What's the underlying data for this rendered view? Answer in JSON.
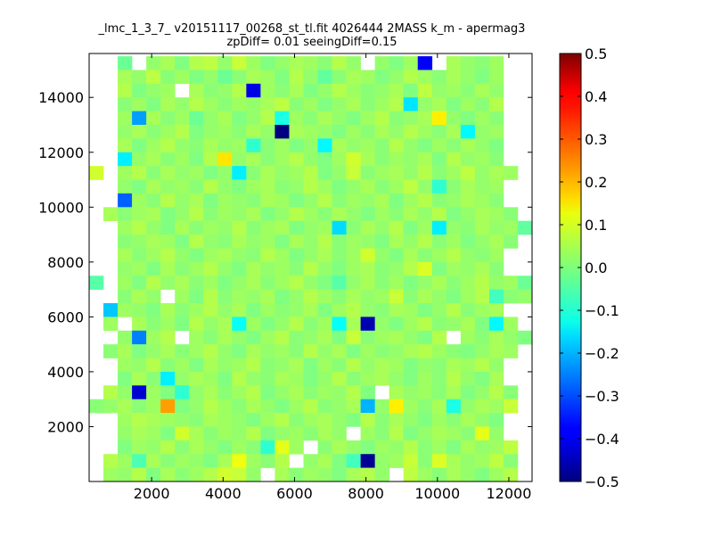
{
  "chart_data": {
    "type": "heatmap",
    "title": "_lmc_1_3_7_ v20151117_00268_st_tl.fit 4026444 2MASS k_m - apermag3",
    "subtitle": "zpDiff= 0.01 seeingDiff=0.15",
    "xlim": [
      250,
      12650
    ],
    "ylim": [
      0,
      15600
    ],
    "xticks": [
      2000,
      4000,
      6000,
      8000,
      10000,
      12000
    ],
    "xtick_labels": [
      "2000",
      "4000",
      "6000",
      "8000",
      "10000",
      "12000"
    ],
    "yticks": [
      2000,
      4000,
      6000,
      8000,
      10000,
      12000,
      14000
    ],
    "ytick_labels": [
      "2000",
      "4000",
      "6000",
      "8000",
      "10000",
      "12000",
      "14000"
    ],
    "x_bin_width": 400,
    "y_bin_width": 500,
    "x_bin_starts": [
      250,
      650,
      1050,
      1450,
      1850,
      2250,
      2650,
      3050,
      3450,
      3850,
      4250,
      4650,
      5050,
      5450,
      5850,
      6250,
      6650,
      7050,
      7450,
      7850,
      8250,
      8650,
      9050,
      9450,
      9850,
      10250,
      10650,
      11050,
      11450,
      11850,
      12250
    ],
    "y_bin_starts": [
      0,
      500,
      1000,
      1500,
      2000,
      2500,
      3000,
      3500,
      4000,
      4500,
      5000,
      5500,
      6000,
      6500,
      7000,
      7500,
      8000,
      8500,
      9000,
      9500,
      10000,
      10500,
      11000,
      11500,
      12000,
      12500,
      13000,
      13500,
      14000,
      14500,
      15000
    ],
    "values_note": "rows ordered from top (y=15000-15500) to bottom (y=0-500); null = no data",
    "values": [
      [
        null,
        null,
        -0.02,
        null,
        0.02,
        0.04,
        0.0,
        0.05,
        0.06,
        0.02,
        0.07,
        0.03,
        0.0,
        0.02,
        0.04,
        0.03,
        0.01,
        0.05,
        0.02,
        null,
        0.02,
        0.0,
        0.03,
        -0.38,
        null,
        0.04,
        0.02,
        0.01,
        0.03,
        null,
        null
      ],
      [
        null,
        null,
        0.04,
        0.02,
        0.06,
        0.01,
        0.03,
        0.0,
        0.02,
        -0.02,
        0.01,
        0.04,
        0.03,
        0.0,
        0.05,
        0.02,
        -0.03,
        0.01,
        0.04,
        0.03,
        0.0,
        0.02,
        0.05,
        0.03,
        0.01,
        0.04,
        0.02,
        0.0,
        0.03,
        null,
        null
      ],
      [
        null,
        null,
        0.05,
        0.0,
        0.02,
        0.03,
        null,
        0.04,
        0.01,
        0.02,
        0.05,
        -0.4,
        0.03,
        0.01,
        0.04,
        0.0,
        0.02,
        0.05,
        0.03,
        0.01,
        0.02,
        0.04,
        0.0,
        0.06,
        0.02,
        0.03,
        0.01,
        0.04,
        0.02,
        null,
        null
      ],
      [
        null,
        null,
        0.01,
        0.03,
        0.0,
        0.04,
        0.02,
        0.05,
        0.03,
        0.01,
        0.03,
        0.02,
        0.04,
        0.06,
        0.01,
        0.03,
        0.0,
        0.02,
        0.04,
        0.01,
        0.03,
        0.05,
        -0.15,
        0.02,
        0.04,
        0.0,
        0.03,
        0.01,
        0.05,
        null,
        null
      ],
      [
        null,
        null,
        0.03,
        -0.22,
        0.04,
        0.01,
        0.03,
        -0.02,
        0.02,
        0.04,
        0.0,
        0.02,
        0.05,
        -0.1,
        0.03,
        0.01,
        0.04,
        0.02,
        0.0,
        0.03,
        0.05,
        0.01,
        0.02,
        0.04,
        0.14,
        0.02,
        0.0,
        0.03,
        0.01,
        null,
        null
      ],
      [
        null,
        null,
        0.02,
        0.04,
        0.01,
        0.03,
        0.05,
        0.0,
        0.02,
        0.03,
        0.01,
        0.04,
        0.02,
        -0.5,
        0.04,
        0.03,
        0.02,
        0.0,
        0.03,
        0.01,
        0.04,
        0.02,
        0.05,
        0.03,
        0.01,
        0.04,
        -0.13,
        0.02,
        0.03,
        null,
        null
      ],
      [
        null,
        null,
        0.04,
        0.0,
        0.03,
        0.05,
        0.02,
        0.01,
        0.04,
        0.02,
        0.03,
        -0.08,
        0.01,
        0.03,
        0.0,
        0.02,
        -0.13,
        0.04,
        0.02,
        0.03,
        0.01,
        0.05,
        0.02,
        0.0,
        0.03,
        0.01,
        0.04,
        0.02,
        0.0,
        null,
        null
      ],
      [
        null,
        null,
        -0.14,
        0.02,
        0.04,
        0.01,
        0.03,
        0.0,
        0.05,
        0.15,
        0.02,
        0.04,
        0.01,
        0.03,
        0.05,
        0.02,
        0.0,
        0.03,
        0.08,
        0.04,
        0.01,
        0.03,
        0.02,
        0.04,
        0.0,
        0.05,
        0.02,
        0.03,
        0.01,
        null,
        null
      ],
      [
        0.08,
        null,
        0.03,
        0.05,
        0.01,
        0.04,
        0.02,
        0.03,
        0.0,
        0.02,
        -0.14,
        0.01,
        0.04,
        0.02,
        0.03,
        0.05,
        0.0,
        0.02,
        0.07,
        0.01,
        0.03,
        0.04,
        0.02,
        0.05,
        0.01,
        0.03,
        0.06,
        0.02,
        0.04,
        0.03,
        null
      ],
      [
        null,
        null,
        0.02,
        0.0,
        0.04,
        0.02,
        0.03,
        0.01,
        0.05,
        0.02,
        0.0,
        0.03,
        0.04,
        0.01,
        0.02,
        0.05,
        0.03,
        0.0,
        0.02,
        0.04,
        0.01,
        0.03,
        0.06,
        0.02,
        -0.08,
        0.01,
        0.04,
        0.02,
        0.03,
        null,
        null
      ],
      [
        null,
        null,
        -0.28,
        0.03,
        0.01,
        0.05,
        0.02,
        0.04,
        0.0,
        0.03,
        0.02,
        0.01,
        0.04,
        0.03,
        0.0,
        0.02,
        0.05,
        0.01,
        0.03,
        0.02,
        0.04,
        0.0,
        0.03,
        0.05,
        0.01,
        0.02,
        0.04,
        0.03,
        0.01,
        null,
        null
      ],
      [
        null,
        0.04,
        0.01,
        0.03,
        0.04,
        0.0,
        0.02,
        0.05,
        0.01,
        0.03,
        0.02,
        0.04,
        0.0,
        0.02,
        0.05,
        0.03,
        0.01,
        0.04,
        0.02,
        0.0,
        0.03,
        0.01,
        0.04,
        0.02,
        0.05,
        0.0,
        0.02,
        0.04,
        0.03,
        0.01,
        null
      ],
      [
        null,
        null,
        0.03,
        0.05,
        0.02,
        0.0,
        0.04,
        0.01,
        0.03,
        0.02,
        0.05,
        0.01,
        0.03,
        0.04,
        0.0,
        0.02,
        0.03,
        -0.16,
        0.01,
        0.04,
        0.02,
        0.05,
        0.0,
        0.03,
        -0.14,
        0.02,
        0.01,
        0.04,
        0.02,
        0.03,
        -0.03
      ],
      [
        null,
        null,
        0.01,
        0.02,
        0.04,
        0.03,
        0.0,
        0.05,
        0.02,
        0.01,
        0.04,
        0.02,
        0.03,
        0.0,
        0.04,
        0.02,
        0.05,
        0.01,
        0.03,
        0.02,
        0.0,
        0.04,
        0.02,
        0.05,
        0.01,
        0.03,
        0.0,
        0.02,
        0.04,
        0.01,
        null
      ],
      [
        null,
        null,
        0.04,
        0.01,
        0.03,
        0.05,
        0.02,
        0.0,
        0.03,
        0.04,
        0.02,
        0.01,
        0.05,
        0.03,
        0.0,
        0.02,
        0.04,
        0.01,
        0.03,
        0.08,
        0.02,
        0.0,
        0.04,
        0.01,
        0.03,
        0.05,
        0.02,
        0.01,
        0.03,
        null,
        null
      ],
      [
        null,
        null,
        0.02,
        0.03,
        0.0,
        0.04,
        0.01,
        0.03,
        0.05,
        0.02,
        0.0,
        0.04,
        0.02,
        0.03,
        0.01,
        0.05,
        0.02,
        0.0,
        0.03,
        0.04,
        0.01,
        0.02,
        0.05,
        0.09,
        0.0,
        0.03,
        0.02,
        0.04,
        0.01,
        null,
        null
      ],
      [
        -0.04,
        null,
        0.03,
        0.0,
        0.05,
        0.02,
        0.04,
        0.01,
        0.03,
        0.0,
        0.02,
        0.04,
        0.01,
        0.03,
        0.05,
        0.02,
        0.0,
        -0.04,
        0.02,
        0.04,
        0.01,
        0.03,
        0.0,
        0.02,
        0.04,
        0.01,
        0.03,
        0.05,
        0.02,
        0.03,
        -0.02
      ],
      [
        null,
        null,
        0.01,
        0.04,
        0.02,
        null,
        0.03,
        0.0,
        0.05,
        0.01,
        0.03,
        0.02,
        0.04,
        0.0,
        0.02,
        0.05,
        0.03,
        0.01,
        0.04,
        0.02,
        0.03,
        0.07,
        0.01,
        0.04,
        0.02,
        0.0,
        0.03,
        0.05,
        -0.06,
        0.01,
        0.02
      ],
      [
        null,
        -0.18,
        0.03,
        0.02,
        0.0,
        0.04,
        0.01,
        0.03,
        0.05,
        0.02,
        0.04,
        0.0,
        0.03,
        0.01,
        0.02,
        0.04,
        0.0,
        0.03,
        0.05,
        0.02,
        0.01,
        0.04,
        0.03,
        0.0,
        0.02,
        0.05,
        0.01,
        0.03,
        0.04,
        null,
        null
      ],
      [
        null,
        0.03,
        null,
        0.04,
        0.01,
        0.03,
        0.0,
        0.05,
        0.02,
        0.04,
        -0.12,
        0.03,
        0.0,
        0.02,
        0.05,
        0.01,
        0.03,
        -0.12,
        0.04,
        -0.45,
        0.02,
        0.0,
        0.03,
        0.05,
        0.01,
        0.02,
        0.04,
        0.0,
        -0.13,
        0.03,
        null
      ],
      [
        null,
        null,
        0.02,
        -0.25,
        0.03,
        0.05,
        null,
        0.03,
        0.01,
        0.04,
        0.02,
        0.0,
        0.03,
        0.05,
        0.01,
        0.02,
        0.04,
        0.0,
        0.07,
        0.01,
        0.03,
        0.04,
        0.02,
        0.0,
        0.05,
        null,
        0.03,
        0.01,
        0.04,
        0.02,
        0.0
      ],
      [
        null,
        0.01,
        0.04,
        0.0,
        0.02,
        0.04,
        0.01,
        0.03,
        0.05,
        0.02,
        0.0,
        0.04,
        0.02,
        0.03,
        0.01,
        0.05,
        0.02,
        0.04,
        0.0,
        0.03,
        0.01,
        0.02,
        0.04,
        0.05,
        0.03,
        0.01,
        0.0,
        0.02,
        0.04,
        0.03,
        null
      ],
      [
        null,
        null,
        0.03,
        0.02,
        0.05,
        0.01,
        0.03,
        0.0,
        0.04,
        0.02,
        0.03,
        0.05,
        0.01,
        0.02,
        0.04,
        0.0,
        0.03,
        0.01,
        0.05,
        0.02,
        0.04,
        0.03,
        0.0,
        0.02,
        0.01,
        0.04,
        0.03,
        0.05,
        0.02,
        null,
        null
      ],
      [
        null,
        null,
        0.0,
        0.04,
        0.01,
        -0.14,
        0.02,
        0.04,
        0.03,
        0.0,
        0.05,
        0.02,
        0.01,
        0.04,
        0.03,
        0.0,
        0.02,
        0.05,
        0.01,
        0.03,
        0.04,
        0.02,
        0.0,
        0.03,
        0.01,
        0.05,
        0.02,
        0.0,
        0.04,
        null,
        null
      ],
      [
        null,
        0.05,
        0.02,
        -0.42,
        0.03,
        0.0,
        -0.08,
        0.02,
        0.04,
        0.01,
        0.03,
        0.05,
        0.0,
        0.02,
        0.04,
        0.01,
        0.03,
        0.02,
        0.05,
        0.0,
        null,
        0.04,
        0.02,
        0.03,
        0.01,
        0.04,
        0.0,
        0.02,
        0.05,
        0.01,
        null
      ],
      [
        0.01,
        0.02,
        0.04,
        0.01,
        0.03,
        0.22,
        0.0,
        0.02,
        0.05,
        0.03,
        0.01,
        0.04,
        0.02,
        0.0,
        0.03,
        0.05,
        0.01,
        0.02,
        0.04,
        -0.2,
        0.02,
        0.14,
        0.03,
        0.01,
        0.04,
        -0.1,
        0.02,
        0.04,
        0.03,
        0.07,
        null
      ],
      [
        null,
        null,
        0.03,
        0.05,
        0.04,
        0.03,
        0.02,
        0.01,
        0.04,
        0.03,
        0.02,
        0.0,
        0.03,
        0.05,
        0.01,
        0.03,
        0.04,
        0.02,
        0.0,
        0.05,
        0.01,
        0.04,
        0.02,
        0.0,
        0.03,
        0.01,
        0.04,
        0.02,
        0.0,
        null,
        null
      ],
      [
        null,
        null,
        0.02,
        0.04,
        0.03,
        0.0,
        0.08,
        0.04,
        0.01,
        0.03,
        0.02,
        0.05,
        0.0,
        0.02,
        0.03,
        0.01,
        0.04,
        0.02,
        null,
        0.03,
        0.01,
        0.05,
        0.0,
        0.02,
        0.04,
        0.03,
        0.01,
        0.1,
        0.02,
        null,
        null
      ],
      [
        null,
        null,
        0.0,
        0.03,
        0.02,
        0.05,
        0.01,
        0.04,
        0.02,
        0.0,
        0.03,
        0.01,
        -0.08,
        0.1,
        0.03,
        null,
        0.01,
        0.04,
        0.02,
        0.0,
        0.03,
        0.02,
        0.05,
        0.01,
        0.03,
        0.0,
        0.04,
        0.02,
        0.03,
        0.06,
        null
      ],
      [
        null,
        0.05,
        0.03,
        -0.05,
        0.04,
        0.01,
        0.03,
        0.02,
        0.0,
        0.04,
        0.11,
        0.03,
        0.01,
        0.05,
        null,
        0.02,
        0.04,
        0.0,
        -0.06,
        -0.48,
        0.02,
        0.03,
        0.07,
        0.01,
        0.09,
        0.04,
        0.02,
        0.03,
        0.06,
        0.01,
        null
      ],
      [
        null,
        0.03,
        0.02,
        0.05,
        0.0,
        0.04,
        0.01,
        0.03,
        0.05,
        0.08,
        0.07,
        0.02,
        null,
        0.04,
        0.01,
        0.03,
        0.02,
        0.0,
        0.04,
        0.05,
        0.02,
        null,
        0.06,
        0.03,
        0.01,
        0.04,
        0.02,
        0.0,
        0.03,
        0.05,
        null
      ]
    ],
    "colorbar": {
      "colormap": "jet",
      "vmin": -0.5,
      "vmax": 0.5,
      "ticks": [
        0.5,
        0.4,
        0.3,
        0.2,
        0.1,
        0.0,
        -0.1,
        -0.2,
        -0.3,
        -0.4,
        -0.5
      ],
      "tick_labels": [
        "0.5",
        "0.4",
        "0.3",
        "0.2",
        "0.1",
        "0.0",
        "−0.1",
        "−0.2",
        "−0.3",
        "−0.4",
        "−0.5"
      ]
    }
  }
}
